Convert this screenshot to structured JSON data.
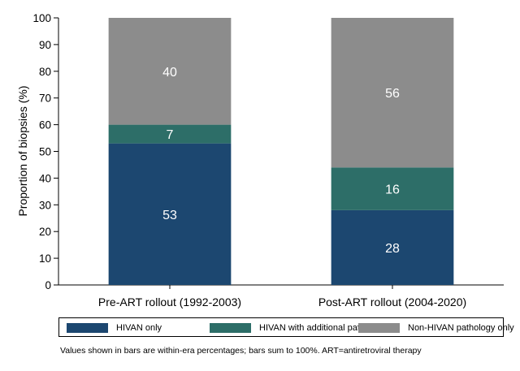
{
  "chart_data": {
    "type": "bar",
    "stacked": true,
    "categories": [
      "Pre-ART rollout (1992-2003)",
      "Post-ART rollout (2004-2020)"
    ],
    "series": [
      {
        "name": "HIVAN only",
        "values": [
          53,
          28
        ],
        "color": "#1c4770"
      },
      {
        "name": "HIVAN with additional pathology",
        "values": [
          7,
          16
        ],
        "color": "#2d6e68"
      },
      {
        "name": "Non-HIVAN pathology only",
        "values": [
          40,
          56
        ],
        "color": "#8c8c8c"
      }
    ],
    "ylabel": "Proportion of biopsies (%)",
    "xlabel": "",
    "ylim": [
      0,
      100
    ],
    "yticks": [
      0,
      10,
      20,
      30,
      40,
      50,
      60,
      70,
      80,
      90,
      100
    ],
    "grid": false,
    "legend_position": "bottom",
    "data_labels": true
  },
  "note": "Values shown in bars are within-era percentages; bars sum to 100%. ART=antiretroviral therapy"
}
